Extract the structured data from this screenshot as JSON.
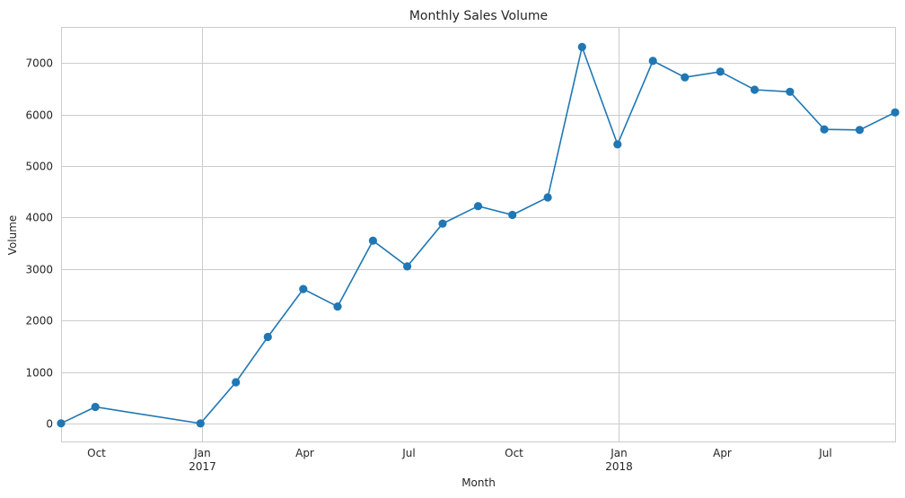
{
  "chart_data": {
    "type": "line",
    "title": "Monthly Sales Volume",
    "xlabel": "Month",
    "ylabel": "Volume",
    "grid": true,
    "legend": "none",
    "xlim": [
      "2016-08-31",
      "2018-08-31"
    ],
    "ylim": [
      -350,
      7700
    ],
    "yticks": [
      0,
      1000,
      2000,
      3000,
      4000,
      5000,
      6000,
      7000
    ],
    "xticks": [
      {
        "date": "2016-10-01",
        "label": "Oct",
        "sublabel": "",
        "major": false
      },
      {
        "date": "2017-01-01",
        "label": "Jan",
        "sublabel": "2017",
        "major": true
      },
      {
        "date": "2017-04-01",
        "label": "Apr",
        "sublabel": "",
        "major": false
      },
      {
        "date": "2017-07-01",
        "label": "Jul",
        "sublabel": "",
        "major": false
      },
      {
        "date": "2017-10-01",
        "label": "Oct",
        "sublabel": "",
        "major": false
      },
      {
        "date": "2018-01-01",
        "label": "Jan",
        "sublabel": "2018",
        "major": true
      },
      {
        "date": "2018-04-01",
        "label": "Apr",
        "sublabel": "",
        "major": false
      },
      {
        "date": "2018-07-01",
        "label": "Jul",
        "sublabel": "",
        "major": false
      }
    ],
    "series": [
      {
        "color": "#1f77b4",
        "marker": "circle",
        "x": [
          "2016-08-31",
          "2016-09-30",
          "2016-12-31",
          "2017-01-31",
          "2017-02-28",
          "2017-03-31",
          "2017-04-30",
          "2017-05-31",
          "2017-06-30",
          "2017-07-31",
          "2017-08-31",
          "2017-09-30",
          "2017-10-31",
          "2017-11-30",
          "2017-12-31",
          "2018-01-31",
          "2018-02-28",
          "2018-03-31",
          "2018-04-30",
          "2018-05-31",
          "2018-06-30",
          "2018-07-31",
          "2018-08-31"
        ],
        "values": [
          2,
          320,
          1,
          800,
          1680,
          2610,
          2270,
          3550,
          3050,
          3880,
          4220,
          4050,
          4390,
          7310,
          5420,
          7040,
          6720,
          6830,
          6480,
          6440,
          5710,
          5700,
          6040
        ]
      }
    ]
  }
}
